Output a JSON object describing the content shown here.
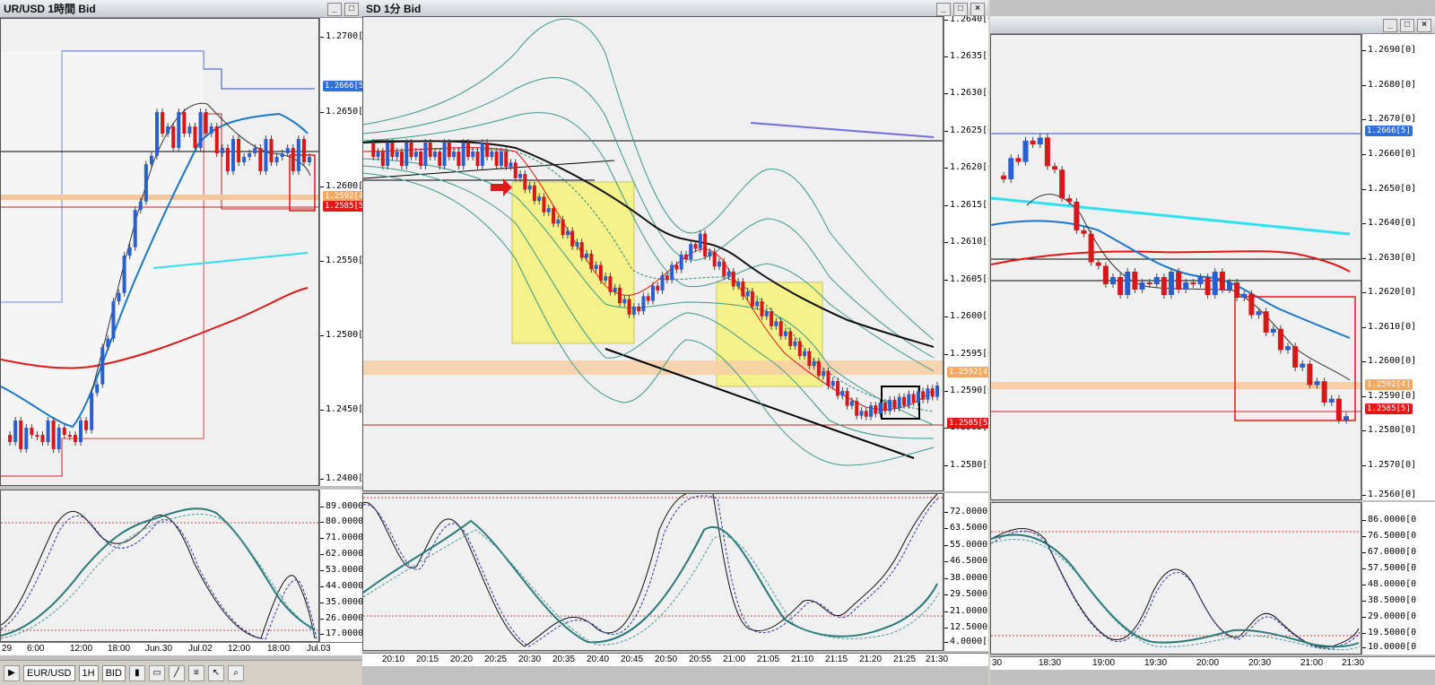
{
  "windows": [
    {
      "title": "UR/USD 1時間 Bid",
      "buttons": [
        "_",
        "□",
        "×"
      ],
      "price_ticks": [
        "1.2700[0]",
        "1.2650[0]",
        "1.2600[0]",
        "1.2550[0]",
        "1.2500[0]",
        "1.2450[0]",
        "1.2400[0]"
      ],
      "price_labels": [
        {
          "text": "1.2666[5]",
          "color": "#2f6fd8"
        },
        {
          "text": "1.2592[4]",
          "color": "#f0a050"
        },
        {
          "text": "1.2585[5]",
          "color": "#e01818"
        }
      ],
      "osc_ticks": [
        "89.0000[0",
        "80.0000[0",
        "71.0000[0",
        "62.0000[0",
        "53.0000[0",
        "44.0000[0",
        "35.0000[0",
        "26.0000[0",
        "17.0000[0"
      ],
      "time_ticks": [
        "29",
        "6:00",
        "12:00",
        "18:00",
        "Jun.30",
        "Jul.02",
        "12:00",
        "18:00",
        "Jul.03"
      ]
    },
    {
      "title": "SD 1分 Bid",
      "tag": "5",
      "buttons": [
        "_",
        "□",
        "×"
      ],
      "price_ticks": [
        "1.2640[0]",
        "1.2635[0]",
        "1.2630[0]",
        "1.2625[0]",
        "1.2620[0]",
        "1.2615[0]",
        "1.2610[0]",
        "1.2605[0]",
        "1.2600[0]",
        "1.2595[0]",
        "1.2590[0]",
        "1.2585[0]",
        "1.2580[0]"
      ],
      "price_labels": [
        {
          "text": "1.2592[4]",
          "color": "#f0a050"
        },
        {
          "text": "1.2585[5]",
          "color": "#e01818"
        }
      ],
      "osc_ticks": [
        "72.0000[0",
        "63.5000[0",
        "55.0000[0",
        "46.5000[0",
        "38.0000[0",
        "29.5000[0",
        "21.0000[0",
        "12.5000[0",
        "4.0000[0]"
      ],
      "time_ticks": [
        "20:10",
        "20:15",
        "20:20",
        "20:25",
        "20:30",
        "20:35",
        "20:40",
        "20:45",
        "20:50",
        "20:55",
        "21:00",
        "21:05",
        "21:10",
        "21:15",
        "21:20",
        "21:25",
        "21:30"
      ]
    },
    {
      "title": "",
      "buttons": [
        "_",
        "□",
        "×"
      ],
      "price_ticks": [
        "1.2690[0]",
        "1.2680[0]",
        "1.2670[0]",
        "1.2660[0]",
        "1.2650[0]",
        "1.2640[0]",
        "1.2630[0]",
        "1.2620[0]",
        "1.2610[0]",
        "1.2600[0]",
        "1.2590[0]",
        "1.2580[0]",
        "1.2570[0]",
        "1.2560[0]"
      ],
      "price_labels": [
        {
          "text": "1.2666[5]",
          "color": "#2f6fd8"
        },
        {
          "text": "1.2592[4]",
          "color": "#f0a050"
        },
        {
          "text": "1.2585[5]",
          "color": "#e01818"
        }
      ],
      "osc_ticks": [
        "86.0000[0",
        "76.5000[0",
        "67.0000[0",
        "57.5000[0",
        "48.0000[0",
        "38.5000[0",
        "29.0000[0",
        "19.5000[0",
        "10.0000[0"
      ],
      "time_ticks": [
        "30",
        "18:30",
        "19:00",
        "19:30",
        "20:00",
        "20:30",
        "21:00",
        "21:30"
      ]
    }
  ],
  "toolbar": {
    "symbol": "EUR/USD",
    "timeframe": "1H",
    "side": "BID"
  }
}
